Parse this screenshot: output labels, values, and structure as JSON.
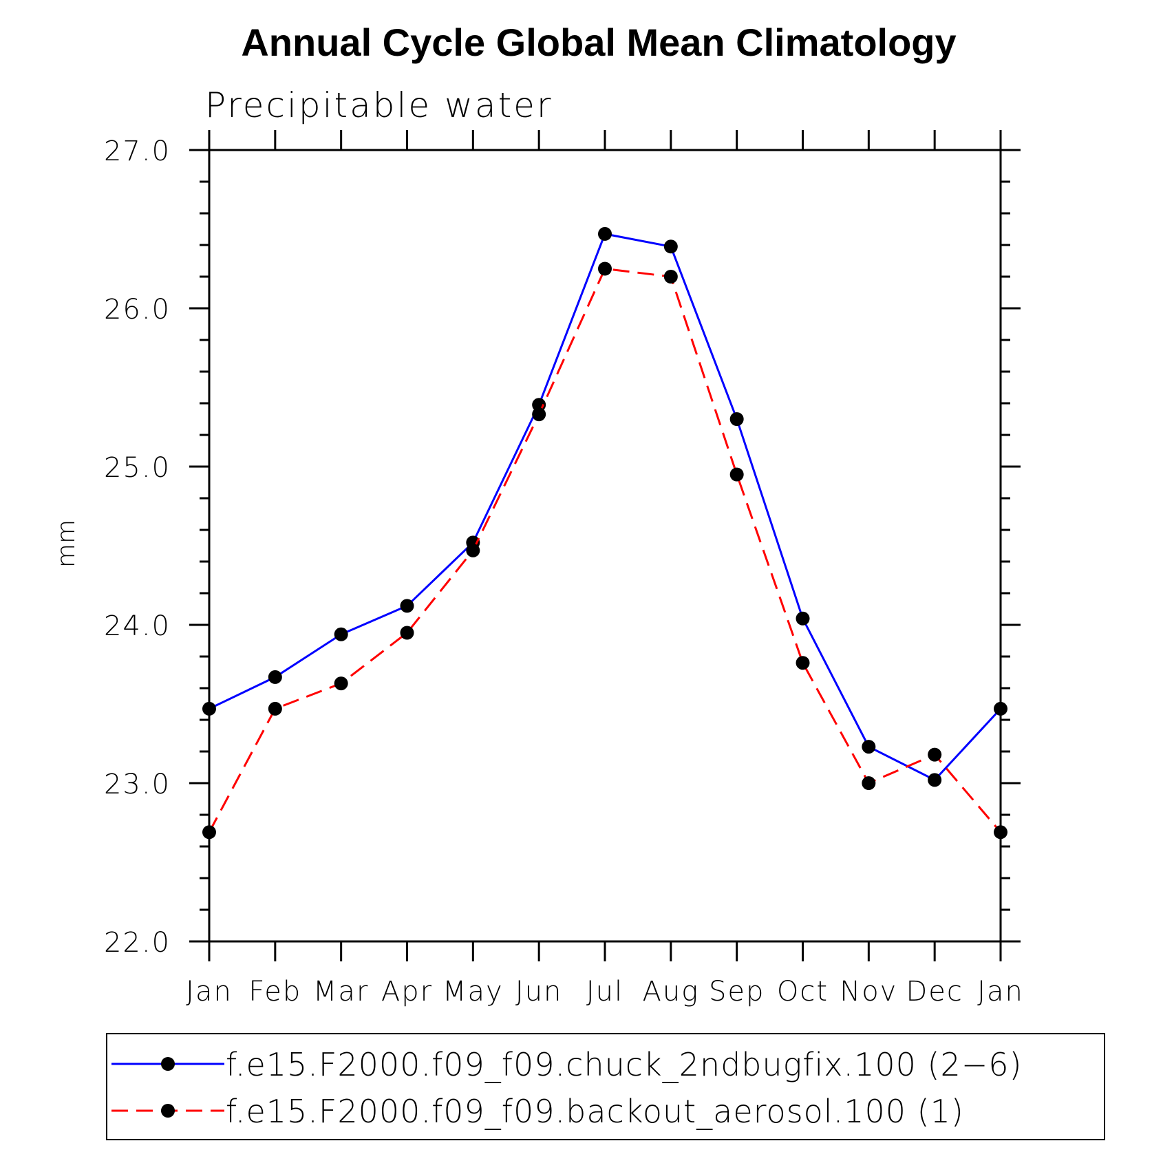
{
  "chart_data": {
    "type": "line",
    "title": "Annual Cycle Global Mean Climatology",
    "subtitle": "Precipitable water",
    "xlabel": "",
    "ylabel": "mm",
    "ylim": [
      22.0,
      27.0
    ],
    "yticks": [
      "22.0",
      "23.0",
      "24.0",
      "25.0",
      "26.0",
      "27.0"
    ],
    "categories": [
      "Jan",
      "Feb",
      "Mar",
      "Apr",
      "May",
      "Jun",
      "Jul",
      "Aug",
      "Sep",
      "Oct",
      "Nov",
      "Dec",
      "Jan"
    ],
    "series": [
      {
        "name": "f.e15.F2000.f09_f09.chuck_2ndbugfix.100 (2−6)",
        "color": "#0000ff",
        "dash": "solid",
        "values": [
          23.47,
          23.67,
          23.94,
          24.12,
          24.52,
          25.39,
          26.47,
          26.39,
          25.3,
          24.04,
          23.23,
          23.02,
          23.47
        ]
      },
      {
        "name": "f.e15.F2000.f09_f09.backout_aerosol.100 (1)",
        "color": "#ff0000",
        "dash": "dashed",
        "values": [
          22.69,
          23.47,
          23.63,
          23.95,
          24.47,
          25.33,
          26.25,
          26.2,
          24.95,
          23.76,
          23.0,
          23.18,
          22.69
        ]
      }
    ],
    "grid": false,
    "legend_position": "bottom"
  }
}
